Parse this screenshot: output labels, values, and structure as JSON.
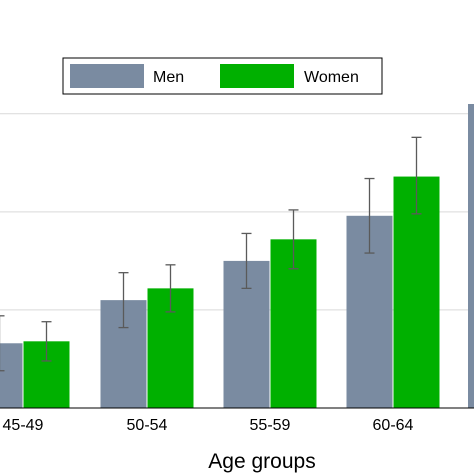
{
  "chart_data": {
    "type": "bar",
    "title": "",
    "xlabel": "Age groups",
    "ylabel": "",
    "categories": [
      "45-49",
      "50-54",
      "55-59",
      "60-64"
    ],
    "series": [
      {
        "name": "Men",
        "color": "#7a8ba1",
        "values": [
          0.33,
          0.55,
          0.75,
          0.98
        ],
        "ci_low": [
          0.19,
          0.41,
          0.61,
          0.79
        ],
        "ci_high": [
          0.47,
          0.69,
          0.89,
          1.17
        ]
      },
      {
        "name": "Women",
        "color": "#00b000",
        "values": [
          0.34,
          0.61,
          0.86,
          1.18
        ],
        "ci_low": [
          0.24,
          0.49,
          0.71,
          0.99
        ],
        "ci_high": [
          0.44,
          0.73,
          1.01,
          1.38
        ]
      }
    ],
    "partial_bar": {
      "series": "Men",
      "value": 1.55
    },
    "ylim": [
      0,
      1.55
    ],
    "grid": true,
    "legend_position": "top-center"
  }
}
